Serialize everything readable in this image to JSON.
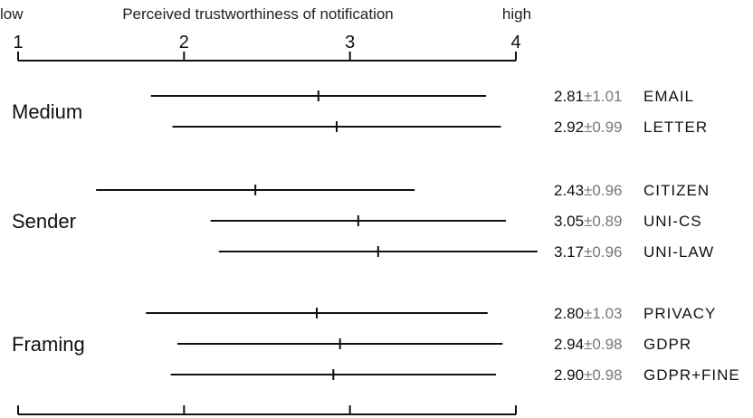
{
  "chart_data": {
    "type": "error-bar",
    "xlabel": "Perceived trustworthiness of notification",
    "low_label": "low",
    "high_label": "high",
    "xlim": [
      1,
      4
    ],
    "ticks": [
      1,
      2,
      3,
      4
    ],
    "groups": [
      {
        "name": "Medium",
        "rows": [
          {
            "label": "EMAIL",
            "mean": 2.81,
            "sd": 1.01,
            "mean_text": "2.81",
            "sd_text": "±1.01"
          },
          {
            "label": "LETTER",
            "mean": 2.92,
            "sd": 0.99,
            "mean_text": "2.92",
            "sd_text": "±0.99"
          }
        ]
      },
      {
        "name": "Sender",
        "rows": [
          {
            "label": "CITIZEN",
            "mean": 2.43,
            "sd": 0.96,
            "mean_text": "2.43",
            "sd_text": "±0.96"
          },
          {
            "label": "UNI-CS",
            "mean": 3.05,
            "sd": 0.89,
            "mean_text": "3.05",
            "sd_text": "±0.89"
          },
          {
            "label": "UNI-LAW",
            "mean": 3.17,
            "sd": 0.96,
            "mean_text": "3.17",
            "sd_text": "±0.96"
          }
        ]
      },
      {
        "name": "Framing",
        "rows": [
          {
            "label": "PRIVACY",
            "mean": 2.8,
            "sd": 1.03,
            "mean_text": "2.80",
            "sd_text": "±1.03"
          },
          {
            "label": "GDPR",
            "mean": 2.94,
            "sd": 0.98,
            "mean_text": "2.94",
            "sd_text": "±0.98"
          },
          {
            "label": "GDPR+FINE",
            "mean": 2.9,
            "sd": 0.98,
            "mean_text": "2.90",
            "sd_text": "±0.98"
          }
        ]
      }
    ]
  }
}
